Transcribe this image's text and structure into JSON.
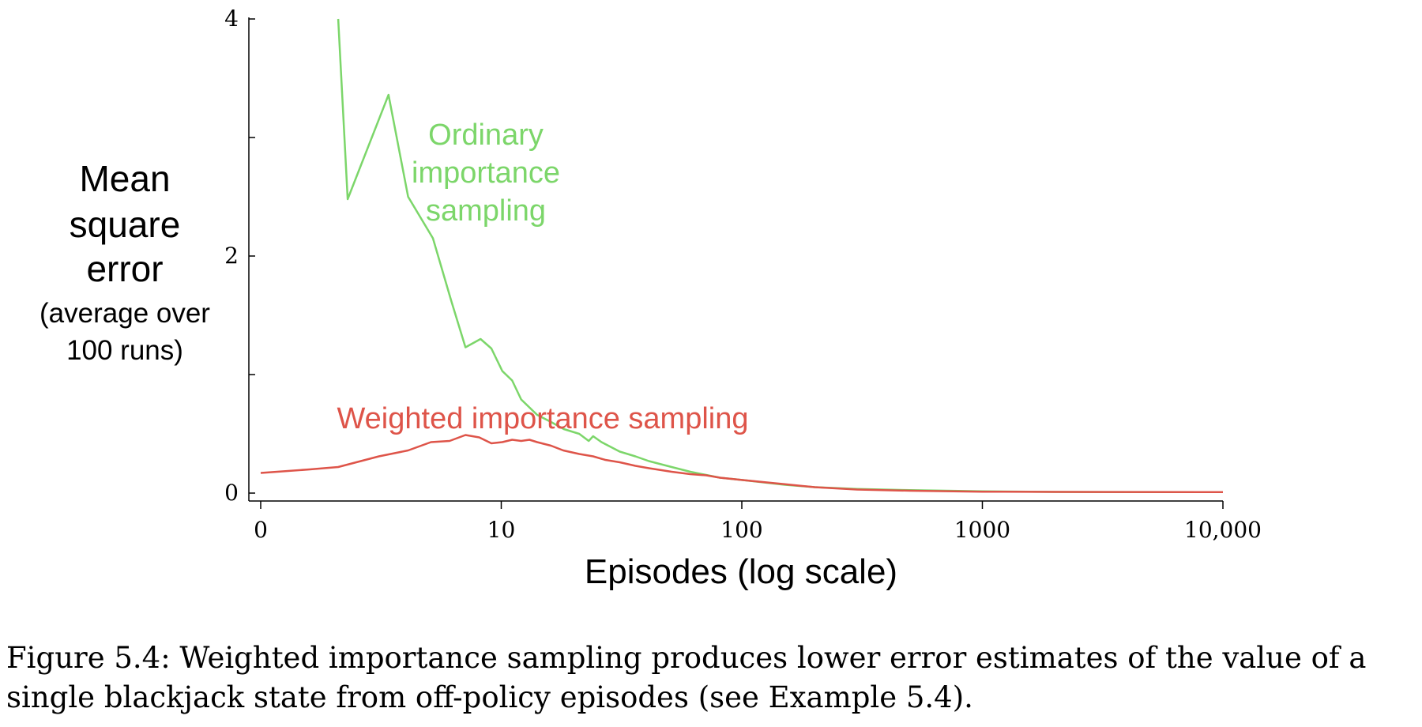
{
  "chart_data": {
    "type": "line",
    "xlabel": "Episodes (log scale)",
    "ylabel_lines": [
      "Mean",
      "square",
      "error"
    ],
    "ylabel_sub_lines": [
      "(average over",
      "100 runs)"
    ],
    "x_scale": "log",
    "x_ticks": [
      {
        "value": 1,
        "label": "0"
      },
      {
        "value": 10,
        "label": "10"
      },
      {
        "value": 100,
        "label": "100"
      },
      {
        "value": 1000,
        "label": "1000"
      },
      {
        "value": 10000,
        "label": "10,000"
      }
    ],
    "y_ticks": [
      {
        "value": 0,
        "label": "0"
      },
      {
        "value": 2,
        "label": "2"
      },
      {
        "value": 4,
        "label": "4"
      }
    ],
    "y_minor_ticks": [
      1,
      3
    ],
    "xlim": [
      1,
      10000
    ],
    "ylim": [
      0,
      4
    ],
    "grid": false,
    "series": [
      {
        "name": "Ordinary importance sampling",
        "label_lines": [
          "Ordinary",
          "importance",
          "sampling"
        ],
        "color": "#7cd66a",
        "points": [
          [
            2.1,
            4.0
          ],
          [
            2.3,
            2.48
          ],
          [
            3.4,
            3.36
          ],
          [
            4.1,
            2.5
          ],
          [
            5.2,
            2.15
          ],
          [
            6.2,
            1.62
          ],
          [
            7.1,
            1.23
          ],
          [
            8.2,
            1.3
          ],
          [
            9.1,
            1.22
          ],
          [
            10.1,
            1.03
          ],
          [
            11.1,
            0.95
          ],
          [
            12.1,
            0.79
          ],
          [
            14.1,
            0.66
          ],
          [
            16.1,
            0.6
          ],
          [
            18.2,
            0.54
          ],
          [
            21.1,
            0.5
          ],
          [
            23.1,
            0.44
          ],
          [
            24.1,
            0.48
          ],
          [
            26.1,
            0.43
          ],
          [
            31.1,
            0.35
          ],
          [
            36.1,
            0.31
          ],
          [
            41.1,
            0.27
          ],
          [
            51.1,
            0.22
          ],
          [
            61.1,
            0.18
          ],
          [
            81.1,
            0.13
          ],
          [
            101,
            0.11
          ],
          [
            151,
            0.07
          ],
          [
            201,
            0.05
          ],
          [
            301,
            0.035
          ],
          [
            501,
            0.025
          ],
          [
            1001,
            0.015
          ],
          [
            2001,
            0.01
          ],
          [
            10000,
            0.008
          ]
        ]
      },
      {
        "name": "Weighted importance sampling",
        "label_lines": [
          "Weighted importance sampling"
        ],
        "color": "#de5449",
        "points": [
          [
            1.0,
            0.17
          ],
          [
            1.6,
            0.2
          ],
          [
            2.1,
            0.22
          ],
          [
            3.1,
            0.31
          ],
          [
            4.1,
            0.36
          ],
          [
            5.1,
            0.43
          ],
          [
            6.1,
            0.44
          ],
          [
            7.1,
            0.49
          ],
          [
            8.1,
            0.47
          ],
          [
            9.1,
            0.42
          ],
          [
            10.1,
            0.43
          ],
          [
            11.1,
            0.45
          ],
          [
            12.1,
            0.44
          ],
          [
            13.1,
            0.45
          ],
          [
            14.1,
            0.43
          ],
          [
            16.1,
            0.4
          ],
          [
            18.1,
            0.36
          ],
          [
            21.1,
            0.33
          ],
          [
            24.1,
            0.31
          ],
          [
            27.1,
            0.28
          ],
          [
            31.1,
            0.26
          ],
          [
            36.1,
            0.23
          ],
          [
            41.1,
            0.21
          ],
          [
            51.1,
            0.18
          ],
          [
            61.1,
            0.16
          ],
          [
            71.1,
            0.15
          ],
          [
            81.1,
            0.13
          ],
          [
            101,
            0.11
          ],
          [
            151,
            0.075
          ],
          [
            201,
            0.05
          ],
          [
            301,
            0.03
          ],
          [
            501,
            0.02
          ],
          [
            1001,
            0.012
          ],
          [
            2001,
            0.01
          ],
          [
            10000,
            0.008
          ]
        ]
      }
    ]
  },
  "caption": {
    "line1": "Figure 5.4: Weighted importance sampling produces lower error estimates of the value of a",
    "line2": "single blackjack state from off-policy episodes (see Example 5.4)."
  }
}
